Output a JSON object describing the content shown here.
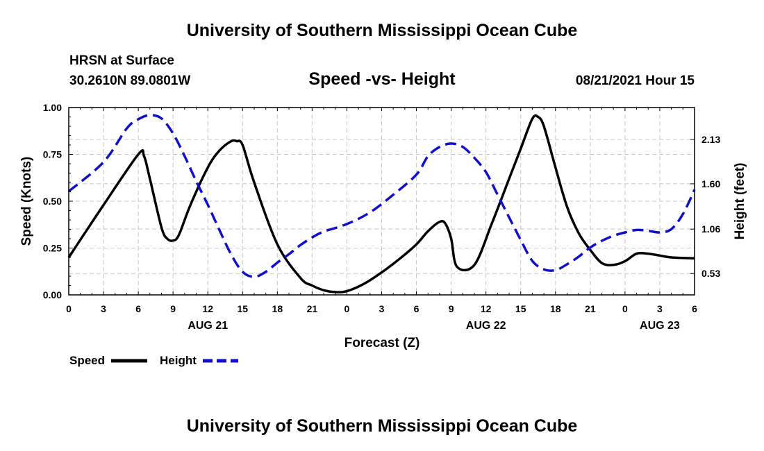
{
  "header": {
    "title": "University of Southern Mississippi Ocean Cube",
    "station": "HRSN at Surface",
    "coords": "30.2610N  89.0801W",
    "chart_title": "Speed -vs- Height",
    "datetime": "08/21/2021 Hour 15"
  },
  "footer": {
    "title": "University of Southern Mississippi Ocean Cube"
  },
  "legend": {
    "speed_label": "Speed",
    "height_label": "Height"
  },
  "colors": {
    "speed": "#000000",
    "height": "#1010cc",
    "grid": "#c8c8c8"
  },
  "chart_data": {
    "type": "line",
    "title": "Speed -vs- Height",
    "xlabel": "Forecast (Z)",
    "ylabel": "Speed (Knots)",
    "y2label": "Height (feet)",
    "xlim": [
      0,
      54
    ],
    "ylim": [
      0,
      1.0
    ],
    "y2lim": [
      0.275,
      2.51
    ],
    "x_ticks": [
      0,
      3,
      6,
      9,
      12,
      15,
      18,
      21,
      24,
      27,
      30,
      33,
      36,
      39,
      42,
      45,
      48,
      51,
      54
    ],
    "x_tick_labels": [
      "0",
      "3",
      "6",
      "9",
      "12",
      "15",
      "18",
      "21",
      "0",
      "3",
      "6",
      "9",
      "12",
      "15",
      "18",
      "21",
      "0",
      "3",
      "6"
    ],
    "date_labels": [
      {
        "x": 12,
        "label": "AUG 21"
      },
      {
        "x": 36,
        "label": "AUG 22"
      },
      {
        "x": 51,
        "label": "AUG 23"
      }
    ],
    "y_ticks": [
      0,
      0.25,
      0.5,
      0.75,
      1.0
    ],
    "y_tick_labels": [
      "0.00",
      "0.25",
      "0.50",
      "0.75",
      "1.00"
    ],
    "y2_ticks": [
      0.53,
      1.06,
      1.6,
      2.13
    ],
    "y2_tick_labels": [
      "0.53",
      "1.06",
      "1.60",
      "2.13"
    ],
    "series": [
      {
        "name": "Speed",
        "axis": "left",
        "style": "solid",
        "x": [
          0,
          3,
          6,
          6.5,
          7,
          8,
          8.5,
          9,
          9.5,
          10.5,
          12,
          13,
          14,
          14.5,
          15,
          16,
          18,
          20,
          21,
          22,
          23,
          24,
          25.5,
          27,
          28.5,
          30,
          31,
          32,
          32.5,
          33,
          33.5,
          35,
          36.5,
          38,
          39,
          40,
          40.5,
          41,
          42,
          43,
          44,
          45,
          46,
          47,
          48,
          49,
          50,
          51,
          52,
          54
        ],
        "values": [
          0.2,
          0.48,
          0.75,
          0.74,
          0.62,
          0.36,
          0.3,
          0.29,
          0.32,
          0.48,
          0.68,
          0.77,
          0.82,
          0.82,
          0.8,
          0.6,
          0.27,
          0.09,
          0.05,
          0.025,
          0.015,
          0.02,
          0.06,
          0.12,
          0.19,
          0.27,
          0.34,
          0.39,
          0.38,
          0.3,
          0.15,
          0.16,
          0.38,
          0.62,
          0.78,
          0.94,
          0.95,
          0.9,
          0.68,
          0.47,
          0.33,
          0.24,
          0.17,
          0.16,
          0.18,
          0.22,
          0.22,
          0.21,
          0.2,
          0.195
        ]
      },
      {
        "name": "Height",
        "axis": "right",
        "style": "dashed",
        "x": [
          0,
          3,
          5,
          6,
          7,
          8,
          9,
          10,
          11,
          12,
          13,
          14,
          15,
          16,
          17,
          18,
          19,
          20,
          21,
          22,
          24,
          26,
          28,
          30,
          31,
          32,
          33,
          34,
          35,
          36,
          37,
          38,
          39,
          40,
          41,
          42,
          43,
          44,
          45,
          46,
          47,
          48,
          49,
          50,
          51,
          52,
          53,
          54
        ],
        "values": [
          1.51,
          1.86,
          2.26,
          2.37,
          2.42,
          2.38,
          2.2,
          1.93,
          1.63,
          1.35,
          1.05,
          0.76,
          0.55,
          0.49,
          0.55,
          0.66,
          0.76,
          0.87,
          0.96,
          1.03,
          1.12,
          1.26,
          1.47,
          1.71,
          1.93,
          2.04,
          2.08,
          2.04,
          1.91,
          1.74,
          1.47,
          1.2,
          0.93,
          0.68,
          0.58,
          0.57,
          0.64,
          0.73,
          0.84,
          0.92,
          0.98,
          1.02,
          1.05,
          1.04,
          1.02,
          1.06,
          1.24,
          1.53
        ]
      }
    ]
  }
}
